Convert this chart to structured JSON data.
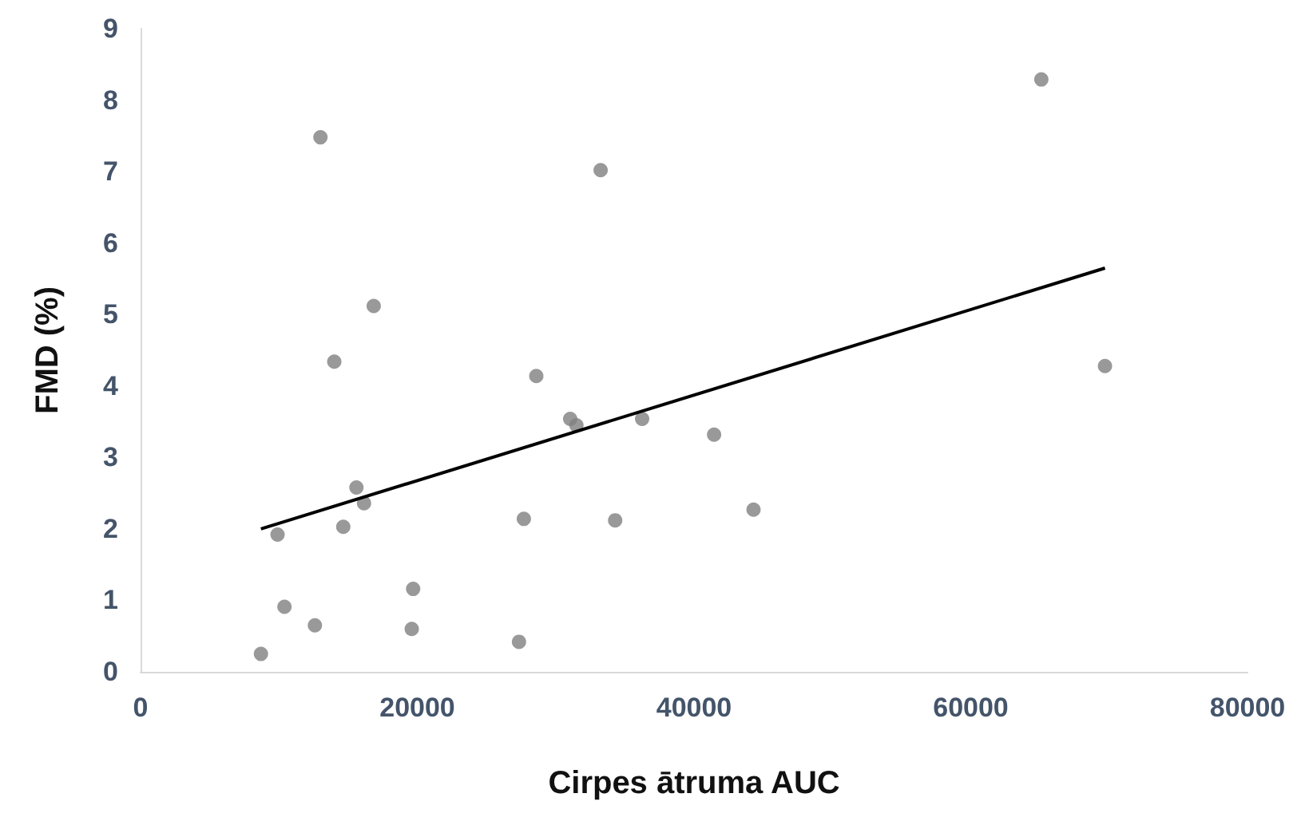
{
  "chart_data": {
    "type": "scatter",
    "xlabel": "Cirpes ātruma AUC",
    "ylabel": "FMD (%)",
    "xlim": [
      0,
      80000
    ],
    "xticks": [
      0,
      20000,
      40000,
      60000,
      80000
    ],
    "ylim": [
      0,
      9
    ],
    "yticks": [
      0,
      1,
      2,
      3,
      4,
      5,
      6,
      7,
      8,
      9
    ],
    "grid": false,
    "marker": "circle",
    "series": [
      {
        "color": "#808080",
        "x": [
          8700,
          9900,
          10400,
          12600,
          13000,
          14000,
          14650,
          15600,
          16150,
          16850,
          19700,
          19600,
          27350,
          27700,
          28600,
          31050,
          31500,
          33250,
          34300,
          36250,
          41450,
          44300,
          65100,
          69700
        ],
        "values": [
          0.25,
          1.92,
          0.91,
          0.65,
          7.48,
          4.34,
          2.03,
          2.58,
          2.36,
          5.12,
          1.16,
          0.6,
          0.42,
          2.14,
          4.14,
          3.54,
          3.45,
          7.02,
          2.12,
          3.54,
          3.32,
          2.27,
          8.29,
          4.28
        ]
      },
      {
        "type": "line",
        "color": "#000000",
        "marker": "none",
        "line_style": "solid",
        "x": [
          8700,
          69700
        ],
        "values": [
          2.0,
          5.65
        ]
      }
    ]
  }
}
